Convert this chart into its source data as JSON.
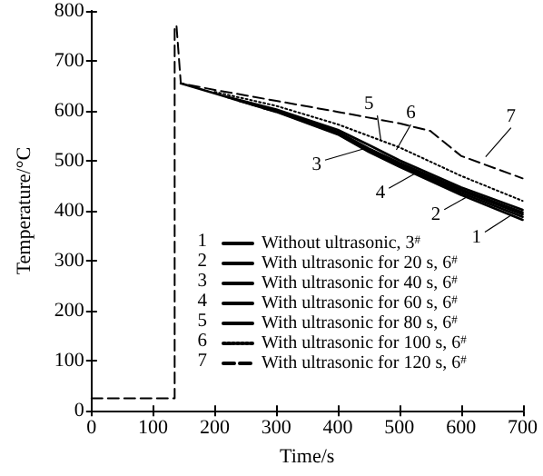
{
  "chart_data": {
    "type": "line",
    "xlabel": "Time/s",
    "ylabel": "Temperature/°C",
    "xlim": [
      0,
      700
    ],
    "ylim": [
      0,
      800
    ],
    "xticks": [
      0,
      100,
      200,
      300,
      400,
      500,
      600,
      700
    ],
    "yticks": [
      0,
      100,
      200,
      300,
      400,
      500,
      600,
      700,
      800
    ],
    "grid": false,
    "legend": "bottom right",
    "marker": "none",
    "series": [
      {
        "name": "Without ultrasonic, 3$^{#}$",
        "color": "#000000",
        "line_style": "solid",
        "x": [
          145,
          200,
          300,
          400,
          450,
          500,
          600,
          700
        ],
        "values": [
          655,
          635,
          598,
          553,
          518,
          488,
          432,
          382
        ]
      },
      {
        "name": "With ultrasonic for 20 s, 6$^{#}$",
        "color": "#000000",
        "line_style": "solid",
        "x": [
          240,
          300,
          400,
          450,
          500,
          600,
          700
        ],
        "values": [
          620,
          600,
          556,
          522,
          493,
          440,
          393
        ]
      },
      {
        "name": "With ultrasonic for 40 s, 6$^{#}$",
        "color": "#000000",
        "line_style": "solid",
        "x": [
          260,
          300,
          400,
          450,
          500,
          600,
          700
        ],
        "values": [
          613,
          601,
          558,
          525,
          496,
          443,
          397
        ]
      },
      {
        "name": "With ultrasonic for 60 s, 6$^{#}$",
        "color": "#000000",
        "line_style": "solid",
        "x": [
          280,
          300,
          400,
          450,
          500,
          600,
          700
        ],
        "values": [
          605,
          599,
          554,
          520,
          490,
          436,
          388
        ]
      },
      {
        "name": "With ultrasonic for 80 s, 6$^{#}$",
        "color": "#000000",
        "line_style": "solid",
        "x": [
          220,
          300,
          400,
          450,
          500,
          600,
          700
        ],
        "values": [
          628,
          603,
          562,
          532,
          501,
          447,
          402
        ]
      },
      {
        "name": "With ultrasonic for 100 s, 6$^{#}$",
        "color": "#000000",
        "line_style": "dotted",
        "x": [
          200,
          300,
          400,
          450,
          500,
          600,
          700
        ],
        "values": [
          638,
          610,
          573,
          550,
          527,
          470,
          420
        ]
      },
      {
        "name": "With ultrasonic for 120 s, 6$^{#}$",
        "color": "#000000",
        "line_style": "dashed",
        "x": [
          0,
          135,
          135,
          138,
          145,
          200,
          300,
          400,
          500,
          550,
          600,
          700
        ],
        "values": [
          25,
          25,
          770,
          770,
          655,
          642,
          620,
          598,
          575,
          560,
          510,
          465
        ]
      }
    ],
    "annotations": [
      {
        "text": "1",
        "x": 680,
        "y": 390
      },
      {
        "text": "2",
        "x": 620,
        "y": 435
      },
      {
        "text": "3",
        "x": 450,
        "y": 527
      },
      {
        "text": "4",
        "x": 530,
        "y": 478
      },
      {
        "text": "5",
        "x": 470,
        "y": 540
      },
      {
        "text": "6",
        "x": 495,
        "y": 522
      },
      {
        "text": "7",
        "x": 640,
        "y": 508
      }
    ]
  }
}
